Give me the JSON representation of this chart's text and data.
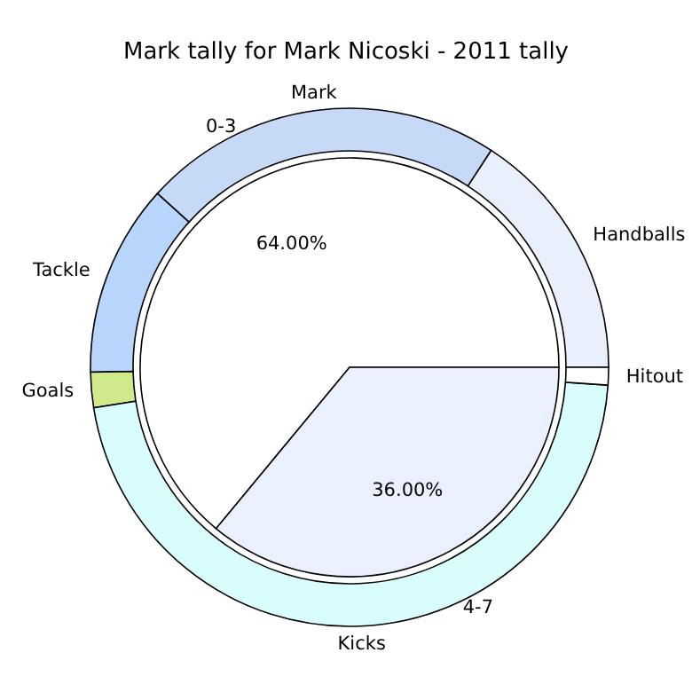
{
  "chart_data": [
    {
      "type": "pie",
      "title": "Mark tally for Mark Nicoski - 2011 tally",
      "categories": [
        "0-3",
        "4-7"
      ],
      "values": [
        64,
        36
      ],
      "colors": [
        "#ffffff",
        "#eaf0fe"
      ],
      "value_labels": [
        "64.00%",
        "36.00%"
      ]
    },
    {
      "type": "donut",
      "categories": [
        "Handballs",
        "Mark",
        "Tackle",
        "Goals",
        "Kicks",
        "Hitout"
      ],
      "values": [
        15.8,
        22.5,
        12,
        2.2,
        46.4,
        1.1
      ],
      "colors": [
        "#eaf0fb",
        "#c6d9f7",
        "#b8d6fb",
        "#d0e98a",
        "#d9fdfd",
        "#ffffff"
      ]
    }
  ]
}
